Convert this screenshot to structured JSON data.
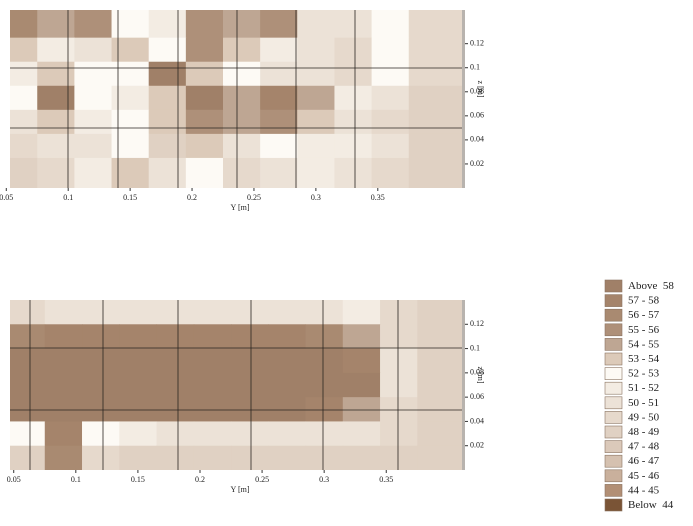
{
  "chart_data": [
    {
      "type": "contour",
      "x": [
        0.06,
        0.09,
        0.12,
        0.15,
        0.18,
        0.21,
        0.24,
        0.27,
        0.3,
        0.33,
        0.36,
        0.39
      ],
      "z": [
        0.135,
        0.115,
        0.095,
        0.075,
        0.055,
        0.035,
        0.015
      ],
      "values": [
        [
          56,
          54,
          55,
          52,
          51,
          55,
          54,
          55,
          50,
          50,
          52,
          49
        ],
        [
          53,
          51,
          50,
          53,
          52,
          55,
          53,
          51,
          50,
          49,
          52,
          49
        ],
        [
          51,
          53,
          52,
          52,
          60,
          53,
          52,
          50,
          50,
          49,
          52,
          49
        ],
        [
          52,
          58,
          52,
          51,
          53,
          58,
          54,
          57,
          54,
          51,
          50,
          48
        ],
        [
          50,
          53,
          51,
          52,
          53,
          55,
          54,
          55,
          53,
          50,
          49,
          48
        ],
        [
          49,
          50,
          50,
          52,
          48,
          53,
          50,
          52,
          51,
          51,
          50,
          48
        ],
        [
          48,
          49,
          51,
          53,
          50,
          52,
          49,
          50,
          51,
          50,
          49,
          48
        ]
      ],
      "xlim": [
        0.053,
        0.418
      ],
      "xticks": [
        0.05,
        0.1,
        0.15,
        0.2,
        0.25,
        0.3,
        0.35
      ],
      "ylim": [
        0,
        0.148
      ],
      "yticks": [
        0.02,
        0.04,
        0.06,
        0.08,
        0.1,
        0.12
      ],
      "x_label": "Y [m]",
      "y_label": "z [m]"
    },
    {
      "type": "contour",
      "x": [
        0.06,
        0.09,
        0.12,
        0.15,
        0.18,
        0.21,
        0.24,
        0.27,
        0.3,
        0.33,
        0.36,
        0.39
      ],
      "z": [
        0.13,
        0.11,
        0.09,
        0.07,
        0.05,
        0.03,
        0.01
      ],
      "values": [
        [
          49,
          50,
          50,
          50,
          50,
          50,
          50,
          50,
          50,
          51,
          49,
          48
        ],
        [
          56,
          57,
          57,
          57,
          57,
          57,
          57,
          57,
          56,
          54,
          49,
          48
        ],
        [
          59,
          59,
          59,
          59,
          59,
          59,
          59,
          59,
          59,
          57,
          50,
          48
        ],
        [
          59,
          59,
          59,
          59,
          59,
          59,
          59,
          59,
          59,
          58,
          50,
          48
        ],
        [
          58,
          59,
          59,
          58,
          58,
          58,
          58,
          58,
          57,
          54,
          49,
          48
        ],
        [
          52,
          57,
          52,
          51,
          50,
          50,
          50,
          50,
          50,
          50,
          49,
          48
        ],
        [
          48,
          56,
          49,
          48,
          48,
          48,
          48,
          48,
          48,
          48,
          48,
          48
        ]
      ],
      "xlim": [
        0.047,
        0.411
      ],
      "xticks": [
        0.05,
        0.1,
        0.15,
        0.2,
        0.25,
        0.3,
        0.35
      ],
      "ylim": [
        0,
        0.14
      ],
      "yticks": [
        0.02,
        0.04,
        0.06,
        0.08,
        0.1,
        0.12
      ],
      "x_label": "Y [m]",
      "y_label": "z [m]"
    }
  ],
  "legend": [
    {
      "label": "Above  58",
      "min": 58,
      "max": null,
      "color": "#a08068"
    },
    {
      "label": "57 - 58",
      "min": 57,
      "max": 58,
      "color": "#a5846b"
    },
    {
      "label": "56 - 57",
      "min": 56,
      "max": 57,
      "color": "#a98a71"
    },
    {
      "label": "55 - 56",
      "min": 55,
      "max": 56,
      "color": "#ae9079"
    },
    {
      "label": "54 - 55",
      "min": 54,
      "max": 55,
      "color": "#bea693"
    },
    {
      "label": "53 - 54",
      "min": 53,
      "max": 54,
      "color": "#dccab9"
    },
    {
      "label": "52 - 53",
      "min": 52,
      "max": 53,
      "color": "#fdfaf5"
    },
    {
      "label": "51 - 52",
      "min": 51,
      "max": 52,
      "color": "#f3ece3"
    },
    {
      "label": "50 - 51",
      "min": 50,
      "max": 51,
      "color": "#ece2d7"
    },
    {
      "label": "49 - 50",
      "min": 49,
      "max": 50,
      "color": "#e6d9cc"
    },
    {
      "label": "48 - 49",
      "min": 48,
      "max": 49,
      "color": "#e0d1c3"
    },
    {
      "label": "47 - 48",
      "min": 47,
      "max": 48,
      "color": "#dbc9ba"
    },
    {
      "label": "46 - 47",
      "min": 46,
      "max": 47,
      "color": "#d5c1b0"
    },
    {
      "label": "45 - 46",
      "min": 45,
      "max": 46,
      "color": "#c9b09c"
    },
    {
      "label": "44 - 45",
      "min": 44,
      "max": 45,
      "color": "#b28f75"
    },
    {
      "label": "Below  44",
      "min": null,
      "max": 44,
      "color": "#7a5436"
    }
  ]
}
